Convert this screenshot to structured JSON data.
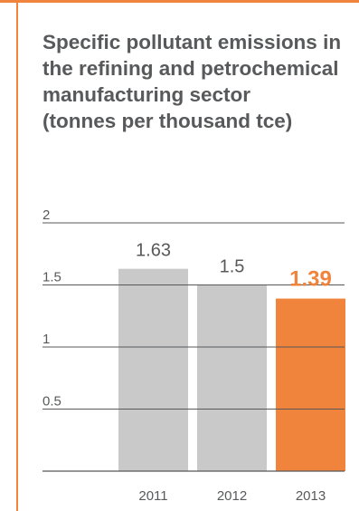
{
  "title_lines": [
    "Specific pollutant emissions in",
    "the refining and petrochemical",
    "manufacturing sector",
    "(tonnes per thousand tce)"
  ],
  "colors": {
    "accent": "#f0843c",
    "bar_gray": "#c8c9c8",
    "text": "#58595b",
    "axis": "#58595b"
  },
  "chart_data": {
    "type": "bar",
    "title": "Specific pollutant emissions in the refining and petrochemical manufacturing sector (tonnes per thousand tce)",
    "categories": [
      "2011",
      "2012",
      "2013"
    ],
    "values": [
      1.63,
      1.5,
      1.39
    ],
    "value_labels": [
      "1.63",
      "1.5",
      "1.39"
    ],
    "highlight_index": 2,
    "y_ticks": [
      0.5,
      1,
      1.5,
      2
    ],
    "y_tick_labels": [
      "0.5",
      "1",
      "1.5",
      "2"
    ],
    "ylim": [
      0,
      2
    ],
    "grid": true,
    "legend": "none"
  }
}
